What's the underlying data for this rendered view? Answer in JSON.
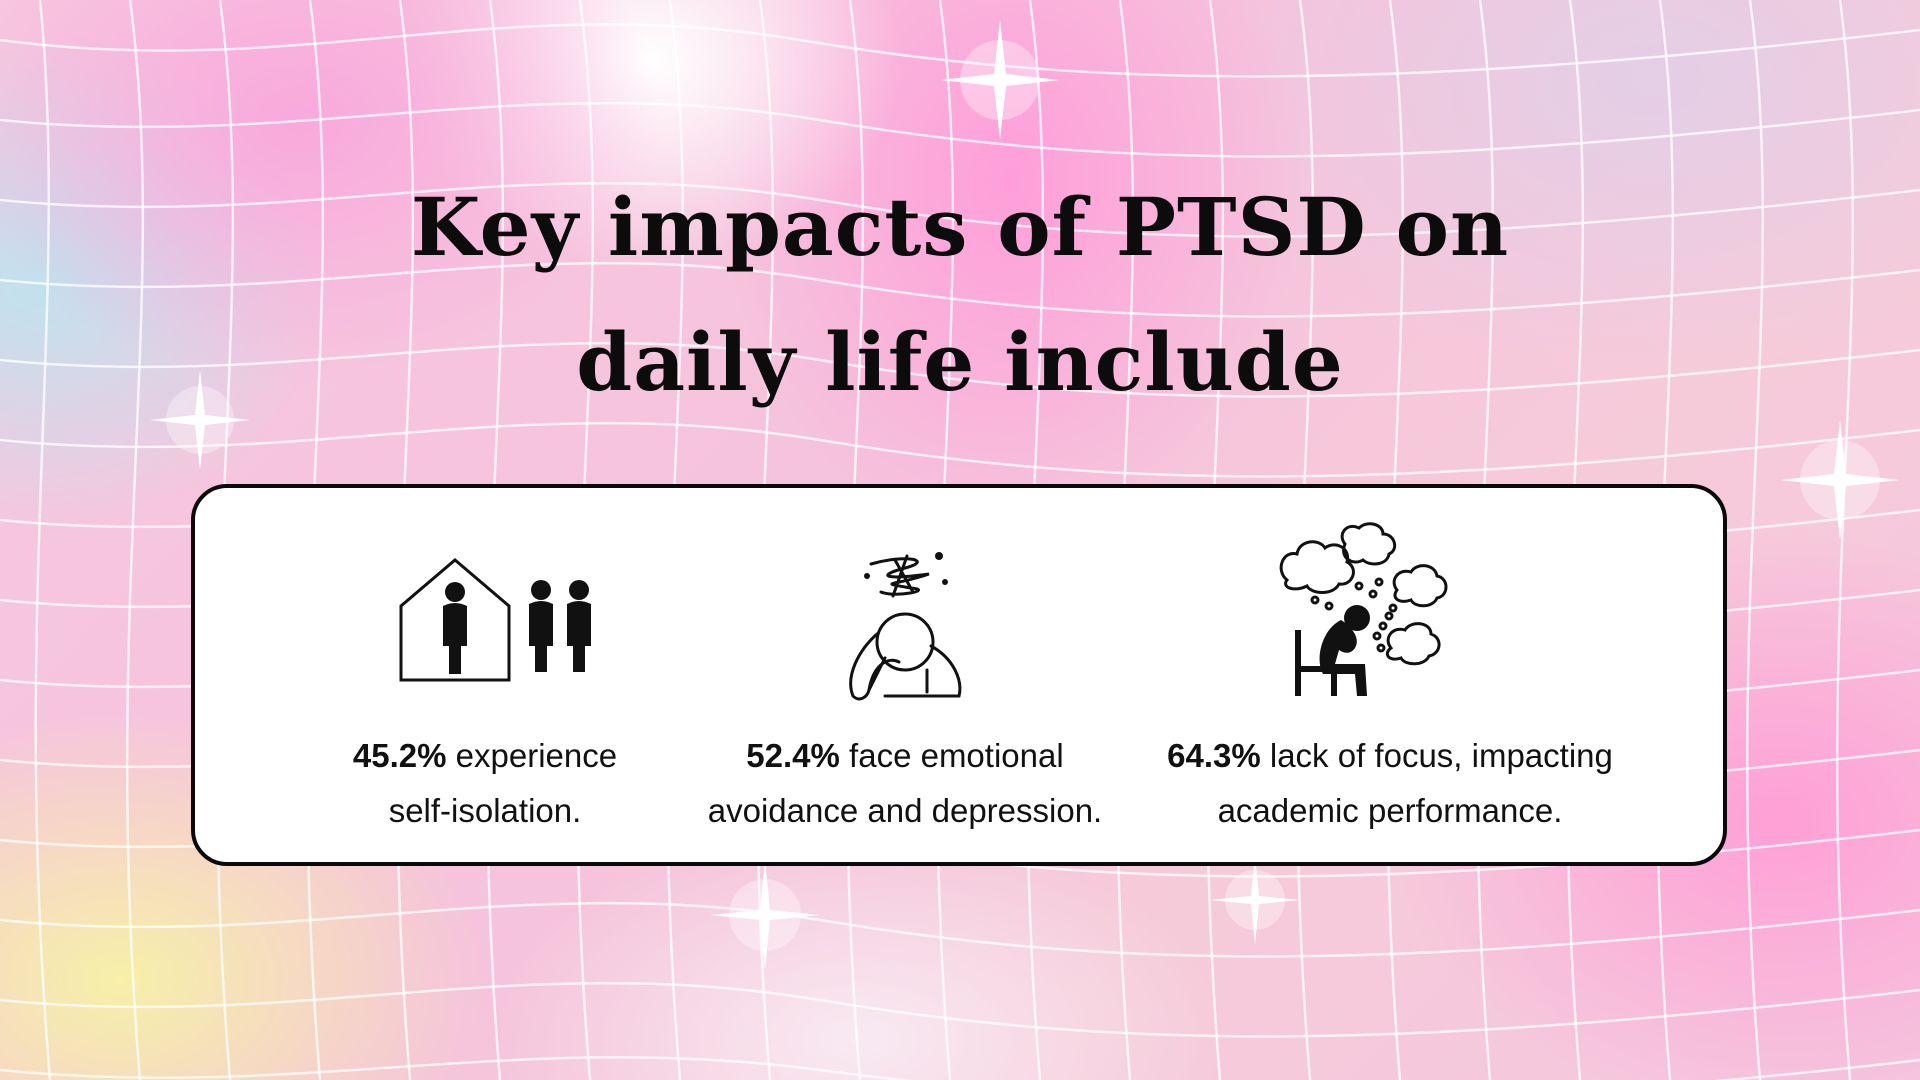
{
  "title": {
    "line1": "Key impacts of PTSD on",
    "line2": "daily life include"
  },
  "items": [
    {
      "stat": "45.2%",
      "text_line1": "experience",
      "text_line2": "self-isolation.",
      "icon": "isolated-person-house-icon"
    },
    {
      "stat": "52.4%",
      "text_line1": "face emotional",
      "text_line2": "avoidance and depression.",
      "icon": "distressed-person-icon"
    },
    {
      "stat": "64.3%",
      "text_line1": "lack of focus, impacting",
      "text_line2": "academic performance.",
      "icon": "overthinking-person-icon"
    }
  ],
  "colors": {
    "text": "#0c0c0c",
    "card": "#ffffff",
    "card_border": "#0a0a0a"
  }
}
